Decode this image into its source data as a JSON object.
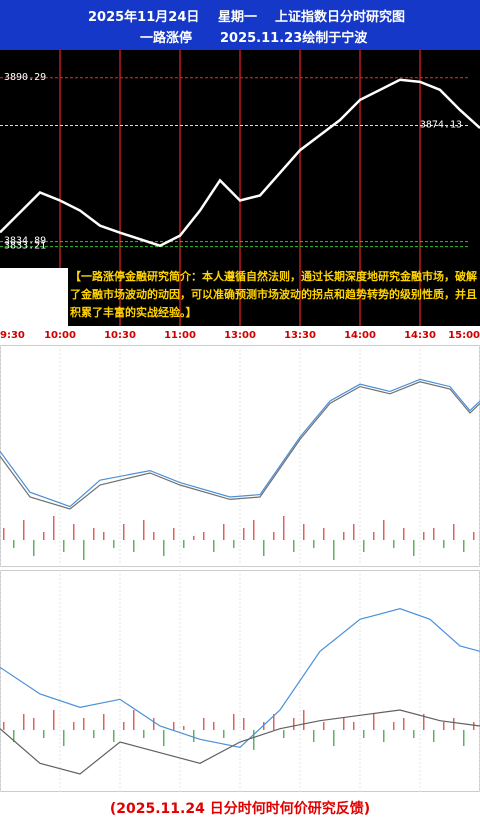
{
  "header": {
    "date": "2025年11月24日",
    "weekday": "星期一",
    "title": "上证指数日分时研究图",
    "author": "一路涨停",
    "drawn": "2025.11.23绘制于宁波"
  },
  "intro": "【一路涨停金融研究简介：本人遵循自然法则，通过长期深度地研究金融市场，破解了金融市场波动的动因，可以准确预测市场波动的拐点和趋势转势的级别性质，并且积累了丰富的实战经验。】",
  "footer": "(2025.11.24 日分时何时何价研究反馈)",
  "chart_data": [
    {
      "type": "line",
      "color": "#ffffff",
      "x": [
        0,
        20,
        30,
        40,
        50,
        60,
        80,
        90,
        100,
        110,
        120,
        130,
        150,
        170,
        180,
        200,
        210,
        220,
        230,
        240
      ],
      "values": [
        3838,
        3851.5,
        3848.8,
        3845.4,
        3840.3,
        3837.9,
        3833.5,
        3836.9,
        3845.4,
        3855.6,
        3848.8,
        3850.5,
        3865.8,
        3876,
        3882.8,
        3889.6,
        3888.9,
        3886.2,
        3879.4,
        3873.3
      ],
      "xlim": [
        0,
        240
      ],
      "ylim": [
        3828,
        3899
      ],
      "xticks": [
        {
          "value": 0,
          "label": "9:30"
        },
        {
          "value": 30,
          "label": "10:00"
        },
        {
          "value": 60,
          "label": "10:30"
        },
        {
          "value": 90,
          "label": "11:00"
        },
        {
          "value": 120,
          "label": "13:00"
        },
        {
          "value": 150,
          "label": "13:30"
        },
        {
          "value": 180,
          "label": "14:00"
        },
        {
          "value": 210,
          "label": "14:30"
        },
        {
          "value": 240,
          "label": "15:00"
        }
      ],
      "levels": [
        3890.29,
        3874.13,
        3834.89,
        3833.21
      ],
      "level_colors": [
        "#e03030",
        "#dddddd",
        "#30c030",
        "#30c030"
      ]
    },
    {
      "type": "line",
      "xlim": [
        0,
        240
      ],
      "ylim": [
        3825,
        3900
      ],
      "series": [
        {
          "color": "#4a90d9",
          "x": [
            0,
            15,
            35,
            50,
            75,
            90,
            115,
            130,
            150,
            165,
            180,
            195,
            210,
            225,
            235,
            240
          ],
          "values": [
            3859,
            3842,
            3836,
            3847,
            3851,
            3846,
            3840,
            3841,
            3865,
            3880,
            3887,
            3884,
            3889,
            3886,
            3876,
            3880
          ]
        },
        {
          "color": "#707070",
          "x": [
            0,
            15,
            35,
            50,
            75,
            90,
            115,
            130,
            150,
            165,
            180,
            195,
            210,
            225,
            235,
            240
          ],
          "values": [
            3857,
            3840,
            3835,
            3845,
            3850,
            3845,
            3839,
            3840,
            3864,
            3879,
            3886,
            3883,
            3888,
            3885,
            3875,
            3879
          ]
        }
      ],
      "bar_values": [
        3,
        -2,
        5,
        -4,
        2,
        6,
        -3,
        4,
        -5,
        3,
        2,
        -2,
        4,
        -3,
        5,
        2,
        -4,
        3,
        -2,
        1,
        2,
        -3,
        4,
        -2,
        3,
        5,
        -4,
        2,
        6,
        -3,
        4,
        -2,
        3,
        -5,
        2,
        4,
        -3,
        2,
        5,
        -2,
        3,
        -4,
        2,
        3,
        -2,
        4,
        -3,
        2
      ],
      "bar_colors": [
        "#e06060",
        "#60b060"
      ]
    },
    {
      "type": "line",
      "xlim": [
        0,
        240
      ],
      "ylim": [
        3825,
        3900
      ],
      "series": [
        {
          "color": "#4a90d9",
          "x": [
            0,
            20,
            40,
            60,
            80,
            100,
            120,
            140,
            160,
            180,
            200,
            215,
            230,
            240
          ],
          "values": [
            3868,
            3858,
            3853,
            3856,
            3846,
            3841,
            3838,
            3852,
            3874,
            3886,
            3890,
            3886,
            3876,
            3874
          ]
        },
        {
          "color": "#606060",
          "x": [
            0,
            20,
            40,
            60,
            80,
            100,
            120,
            140,
            160,
            180,
            200,
            220,
            240
          ],
          "values": [
            3845,
            3832,
            3828,
            3840,
            3836,
            3832,
            3840,
            3845,
            3848,
            3850,
            3852,
            3848,
            3846
          ]
        }
      ],
      "bar_values": [
        2,
        -3,
        4,
        3,
        -2,
        5,
        -4,
        2,
        3,
        -2,
        4,
        -3,
        2,
        5,
        -2,
        3,
        -4,
        2,
        1,
        -3,
        3,
        2,
        -2,
        4,
        3,
        -5,
        2,
        4,
        -2,
        3,
        5,
        -3,
        2,
        -4,
        3,
        2,
        -2,
        4,
        -3,
        2,
        3,
        -2,
        4,
        -3,
        2,
        3,
        -4,
        2
      ],
      "bar_colors": [
        "#e06060",
        "#60b060"
      ]
    }
  ]
}
